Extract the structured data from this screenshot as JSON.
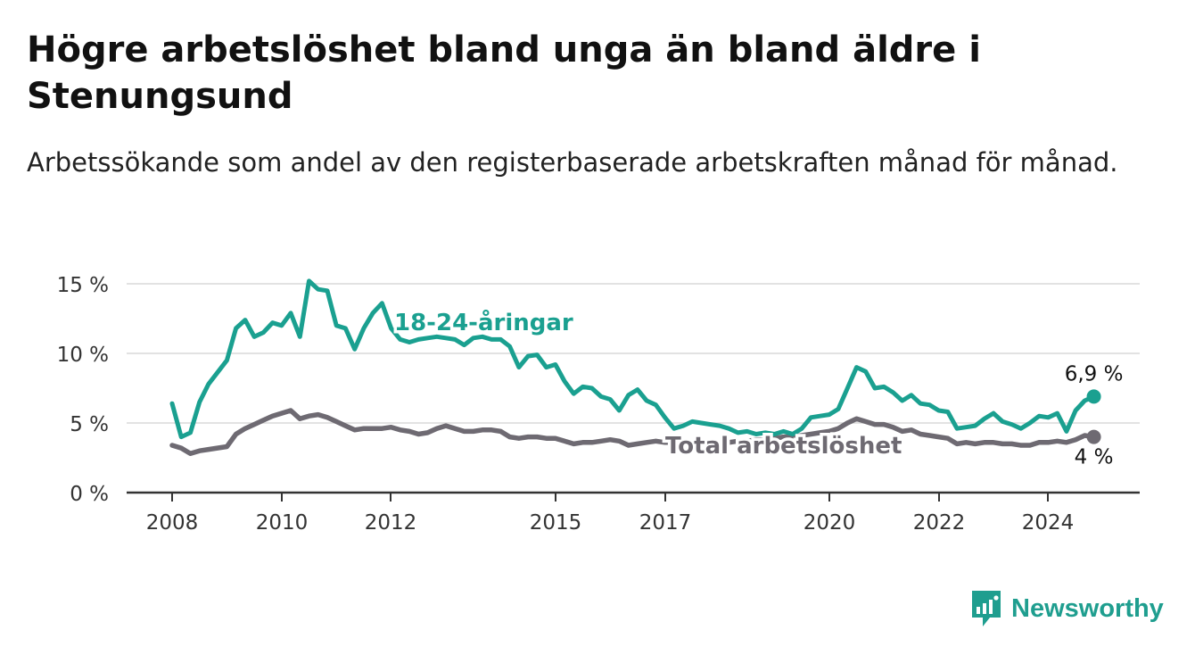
{
  "title": "Högre arbetslöshet bland unga än bland äldre i Stenungsund",
  "subtitle": "Arbetssökande som andel av den registerbaserade arbetskraften månad för månad.",
  "brand": {
    "name": "Newsworthy"
  },
  "colors": {
    "youth": "#1aa090",
    "total": "#6e6a72",
    "grid": "#d8d8d8",
    "axis": "#333333"
  },
  "chart_data": {
    "type": "line",
    "x_ticks": [
      "2008",
      "2010",
      "2012",
      "2015",
      "2017",
      "2020",
      "2022",
      "2024"
    ],
    "y_ticks": [
      "0 %",
      "5 %",
      "10 %",
      "15 %"
    ],
    "ylim": [
      0,
      15
    ],
    "grid": true,
    "series": [
      {
        "name": "18-24-åringar",
        "color": "#1aa090",
        "end_label": "6,9 %",
        "points": [
          [
            "2008-01",
            6.4
          ],
          [
            "2008-03",
            4.0
          ],
          [
            "2008-05",
            4.3
          ],
          [
            "2008-07",
            6.5
          ],
          [
            "2008-09",
            7.8
          ],
          [
            "2009-01",
            9.5
          ],
          [
            "2009-03",
            11.8
          ],
          [
            "2009-05",
            12.4
          ],
          [
            "2009-07",
            11.2
          ],
          [
            "2009-09",
            11.5
          ],
          [
            "2009-11",
            12.2
          ],
          [
            "2010-01",
            12.0
          ],
          [
            "2010-03",
            12.9
          ],
          [
            "2010-05",
            11.2
          ],
          [
            "2010-07",
            15.2
          ],
          [
            "2010-09",
            14.6
          ],
          [
            "2010-11",
            14.5
          ],
          [
            "2011-01",
            12.0
          ],
          [
            "2011-03",
            11.8
          ],
          [
            "2011-05",
            10.3
          ],
          [
            "2011-07",
            11.8
          ],
          [
            "2011-09",
            12.9
          ],
          [
            "2011-11",
            13.6
          ],
          [
            "2012-01",
            11.8
          ],
          [
            "2012-03",
            11.0
          ],
          [
            "2012-05",
            10.8
          ],
          [
            "2012-07",
            11.0
          ],
          [
            "2012-09",
            11.1
          ],
          [
            "2012-11",
            11.2
          ],
          [
            "2013-01",
            11.1
          ],
          [
            "2013-03",
            11.0
          ],
          [
            "2013-05",
            10.6
          ],
          [
            "2013-07",
            11.1
          ],
          [
            "2013-09",
            11.2
          ],
          [
            "2013-11",
            11.0
          ],
          [
            "2014-01",
            11.0
          ],
          [
            "2014-03",
            10.5
          ],
          [
            "2014-05",
            9.0
          ],
          [
            "2014-07",
            9.8
          ],
          [
            "2014-09",
            9.9
          ],
          [
            "2014-11",
            9.0
          ],
          [
            "2015-01",
            9.2
          ],
          [
            "2015-03",
            8.0
          ],
          [
            "2015-05",
            7.1
          ],
          [
            "2015-07",
            7.6
          ],
          [
            "2015-09",
            7.5
          ],
          [
            "2015-11",
            6.9
          ],
          [
            "2016-01",
            6.7
          ],
          [
            "2016-03",
            5.9
          ],
          [
            "2016-05",
            7.0
          ],
          [
            "2016-07",
            7.4
          ],
          [
            "2016-09",
            6.6
          ],
          [
            "2016-11",
            6.3
          ],
          [
            "2017-01",
            5.4
          ],
          [
            "2017-03",
            4.6
          ],
          [
            "2017-05",
            4.8
          ],
          [
            "2017-07",
            5.1
          ],
          [
            "2017-09",
            5.0
          ],
          [
            "2017-11",
            4.9
          ],
          [
            "2018-01",
            4.8
          ],
          [
            "2018-03",
            4.6
          ],
          [
            "2018-05",
            4.3
          ],
          [
            "2018-07",
            4.4
          ],
          [
            "2018-09",
            4.2
          ],
          [
            "2018-11",
            4.3
          ],
          [
            "2019-01",
            4.2
          ],
          [
            "2019-03",
            4.4
          ],
          [
            "2019-05",
            4.2
          ],
          [
            "2019-07",
            4.6
          ],
          [
            "2019-09",
            5.4
          ],
          [
            "2019-11",
            5.5
          ],
          [
            "2020-01",
            5.6
          ],
          [
            "2020-03",
            6.0
          ],
          [
            "2020-05",
            7.5
          ],
          [
            "2020-07",
            9.0
          ],
          [
            "2020-09",
            8.7
          ],
          [
            "2020-11",
            7.5
          ],
          [
            "2021-01",
            7.6
          ],
          [
            "2021-03",
            7.2
          ],
          [
            "2021-05",
            6.6
          ],
          [
            "2021-07",
            7.0
          ],
          [
            "2021-09",
            6.4
          ],
          [
            "2021-11",
            6.3
          ],
          [
            "2022-01",
            5.9
          ],
          [
            "2022-03",
            5.8
          ],
          [
            "2022-05",
            4.6
          ],
          [
            "2022-07",
            4.7
          ],
          [
            "2022-09",
            4.8
          ],
          [
            "2022-11",
            5.3
          ],
          [
            "2023-01",
            5.7
          ],
          [
            "2023-03",
            5.1
          ],
          [
            "2023-05",
            4.9
          ],
          [
            "2023-07",
            4.6
          ],
          [
            "2023-09",
            5.0
          ],
          [
            "2023-11",
            5.5
          ],
          [
            "2024-01",
            5.4
          ],
          [
            "2024-03",
            5.7
          ],
          [
            "2024-05",
            4.4
          ],
          [
            "2024-07",
            5.9
          ],
          [
            "2024-09",
            6.6
          ],
          [
            "2024-11",
            6.9
          ]
        ]
      },
      {
        "name": "Total arbetslöshet",
        "color": "#6e6a72",
        "end_label": "4 %",
        "points": [
          [
            "2008-01",
            3.4
          ],
          [
            "2008-03",
            3.2
          ],
          [
            "2008-05",
            2.8
          ],
          [
            "2008-07",
            3.0
          ],
          [
            "2008-09",
            3.1
          ],
          [
            "2009-01",
            3.3
          ],
          [
            "2009-03",
            4.2
          ],
          [
            "2009-05",
            4.6
          ],
          [
            "2009-07",
            4.9
          ],
          [
            "2009-09",
            5.2
          ],
          [
            "2009-11",
            5.5
          ],
          [
            "2010-01",
            5.7
          ],
          [
            "2010-03",
            5.9
          ],
          [
            "2010-05",
            5.3
          ],
          [
            "2010-07",
            5.5
          ],
          [
            "2010-09",
            5.6
          ],
          [
            "2010-11",
            5.4
          ],
          [
            "2011-01",
            5.1
          ],
          [
            "2011-03",
            4.8
          ],
          [
            "2011-05",
            4.5
          ],
          [
            "2011-07",
            4.6
          ],
          [
            "2011-09",
            4.6
          ],
          [
            "2011-11",
            4.6
          ],
          [
            "2012-01",
            4.7
          ],
          [
            "2012-03",
            4.5
          ],
          [
            "2012-05",
            4.4
          ],
          [
            "2012-07",
            4.2
          ],
          [
            "2012-09",
            4.3
          ],
          [
            "2012-11",
            4.6
          ],
          [
            "2013-01",
            4.8
          ],
          [
            "2013-03",
            4.6
          ],
          [
            "2013-05",
            4.4
          ],
          [
            "2013-07",
            4.4
          ],
          [
            "2013-09",
            4.5
          ],
          [
            "2013-11",
            4.5
          ],
          [
            "2014-01",
            4.4
          ],
          [
            "2014-03",
            4.0
          ],
          [
            "2014-05",
            3.9
          ],
          [
            "2014-07",
            4.0
          ],
          [
            "2014-09",
            4.0
          ],
          [
            "2014-11",
            3.9
          ],
          [
            "2015-01",
            3.9
          ],
          [
            "2015-03",
            3.7
          ],
          [
            "2015-05",
            3.5
          ],
          [
            "2015-07",
            3.6
          ],
          [
            "2015-09",
            3.6
          ],
          [
            "2015-11",
            3.7
          ],
          [
            "2016-01",
            3.8
          ],
          [
            "2016-03",
            3.7
          ],
          [
            "2016-05",
            3.4
          ],
          [
            "2016-07",
            3.5
          ],
          [
            "2016-09",
            3.6
          ],
          [
            "2016-11",
            3.7
          ],
          [
            "2017-01",
            3.6
          ],
          [
            "2017-03",
            3.6
          ],
          [
            "2017-05",
            3.7
          ],
          [
            "2017-07",
            3.7
          ],
          [
            "2017-09",
            3.6
          ],
          [
            "2017-11",
            3.6
          ],
          [
            "2018-01",
            3.6
          ],
          [
            "2018-03",
            3.6
          ],
          [
            "2018-05",
            3.7
          ],
          [
            "2018-07",
            3.7
          ],
          [
            "2018-09",
            3.8
          ],
          [
            "2018-11",
            3.8
          ],
          [
            "2019-01",
            3.9
          ],
          [
            "2019-03",
            4.0
          ],
          [
            "2019-05",
            4.0
          ],
          [
            "2019-07",
            4.1
          ],
          [
            "2019-09",
            4.2
          ],
          [
            "2019-11",
            4.3
          ],
          [
            "2020-01",
            4.4
          ],
          [
            "2020-03",
            4.6
          ],
          [
            "2020-05",
            5.0
          ],
          [
            "2020-07",
            5.3
          ],
          [
            "2020-09",
            5.1
          ],
          [
            "2020-11",
            4.9
          ],
          [
            "2021-01",
            4.9
          ],
          [
            "2021-03",
            4.7
          ],
          [
            "2021-05",
            4.4
          ],
          [
            "2021-07",
            4.5
          ],
          [
            "2021-09",
            4.2
          ],
          [
            "2021-11",
            4.1
          ],
          [
            "2022-01",
            4.0
          ],
          [
            "2022-03",
            3.9
          ],
          [
            "2022-05",
            3.5
          ],
          [
            "2022-07",
            3.6
          ],
          [
            "2022-09",
            3.5
          ],
          [
            "2022-11",
            3.6
          ],
          [
            "2023-01",
            3.6
          ],
          [
            "2023-03",
            3.5
          ],
          [
            "2023-05",
            3.5
          ],
          [
            "2023-07",
            3.4
          ],
          [
            "2023-09",
            3.4
          ],
          [
            "2023-11",
            3.6
          ],
          [
            "2024-01",
            3.6
          ],
          [
            "2024-03",
            3.7
          ],
          [
            "2024-05",
            3.6
          ],
          [
            "2024-07",
            3.8
          ],
          [
            "2024-09",
            4.1
          ],
          [
            "2024-11",
            4.0
          ]
        ]
      }
    ]
  }
}
